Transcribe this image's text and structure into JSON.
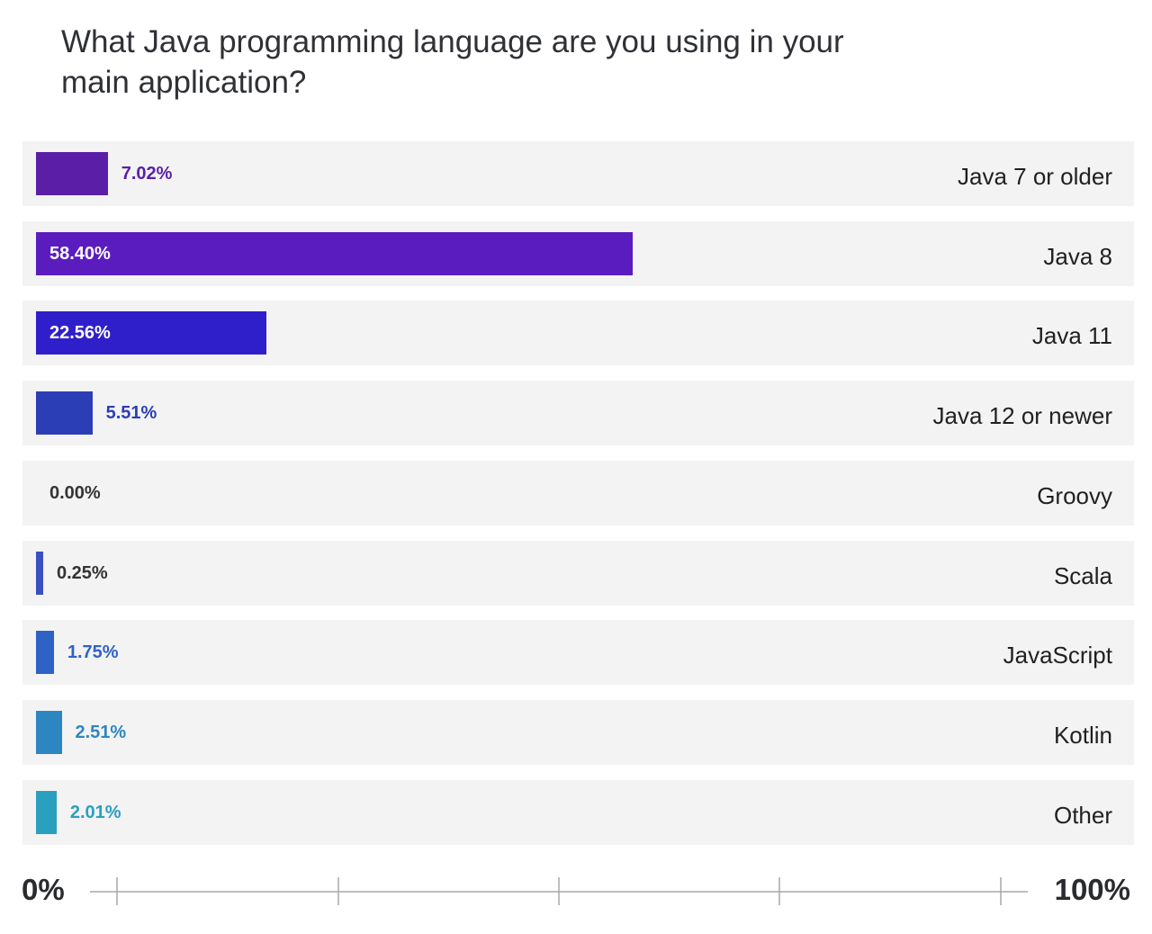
{
  "chart_data": {
    "type": "bar",
    "orientation": "horizontal",
    "title": "What Java programming language are you using in your main application?",
    "categories": [
      "Java 7 or older",
      "Java 8",
      "Java 11",
      "Java 12 or newer",
      "Groovy",
      "Scala",
      "JavaScript",
      "Kotlin",
      "Other"
    ],
    "values": [
      7.02,
      58.4,
      22.56,
      5.51,
      0.0,
      0.25,
      1.75,
      2.51,
      2.01
    ],
    "value_labels": [
      "7.02%",
      "58.40%",
      "22.56%",
      "5.51%",
      "0.00%",
      "0.25%",
      "1.75%",
      "2.51%",
      "2.01%"
    ],
    "colors": [
      "#5a1fa6",
      "#5b1cbf",
      "#2f1fcb",
      "#2c3eb6",
      "#4a3fb0",
      "#3a4fc0",
      "#2f62c7",
      "#2e86c1",
      "#2aa0bf"
    ],
    "value_text_colors": [
      "#5a1fa6",
      "#ffffff",
      "#ffffff",
      "#2c3eb6",
      "#333333",
      "#333333",
      "#2f62c7",
      "#2e86c1",
      "#2aa0bf"
    ],
    "xlim": [
      0,
      100
    ],
    "axis_labels": {
      "min": "0%",
      "max": "100%"
    },
    "grid": false,
    "legend": "none"
  }
}
